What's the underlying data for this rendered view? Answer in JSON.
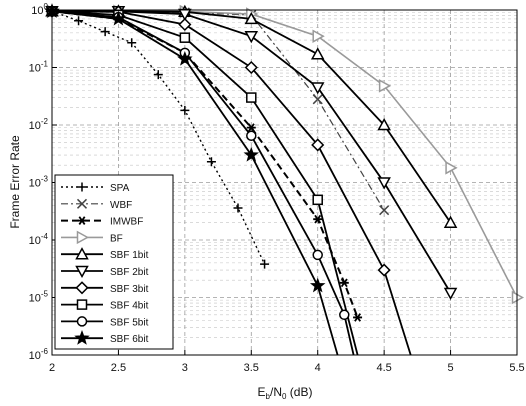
{
  "chart_data": {
    "type": "line",
    "xlabel_parts": {
      "e": "E",
      "b": "b",
      "sep": "/N",
      "zero": "0",
      "unit": " (dB)"
    },
    "ylabel": "Frame Error Rate",
    "xlim": [
      2,
      5.5
    ],
    "ylim_log10": [
      -6,
      0
    ],
    "yscale": "log",
    "x_ticks": [
      2,
      2.5,
      3,
      3.5,
      4,
      4.5,
      5,
      5.5
    ],
    "x_tick_labels": [
      "2",
      "2.5",
      "3",
      "3.5",
      "4",
      "4.5",
      "5",
      "5.5"
    ],
    "y_ticks_exp": [
      0,
      -1,
      -2,
      -3,
      -4,
      -5,
      -6
    ],
    "grid": true,
    "legend_position": "bottom-left",
    "series": [
      {
        "name": "SPA",
        "marker": "plus",
        "dash": "2,3",
        "color": "#000000",
        "stroke_width": 1.4,
        "points": [
          [
            2,
            0.95
          ],
          [
            2.2,
            0.65
          ],
          [
            2.4,
            0.42
          ],
          [
            2.6,
            0.27
          ],
          [
            2.8,
            0.075
          ],
          [
            3.0,
            0.018
          ],
          [
            3.2,
            0.0023
          ],
          [
            3.4,
            0.00036
          ],
          [
            3.6,
            3.8e-05
          ]
        ]
      },
      {
        "name": "WBF",
        "marker": "x",
        "dash": "7,3,2,3",
        "color": "#444444",
        "stroke_width": 1.2,
        "points": [
          [
            2,
            0.95
          ],
          [
            2.5,
            0.93
          ],
          [
            3.0,
            0.91
          ],
          [
            3.5,
            0.82
          ],
          [
            4.0,
            0.028
          ],
          [
            4.5,
            0.00033
          ]
        ]
      },
      {
        "name": "IMWBF",
        "marker": "star6",
        "dash": "7,4",
        "color": "#000000",
        "stroke_width": 2.0,
        "points": [
          [
            2,
            0.95
          ],
          [
            2.5,
            0.7
          ],
          [
            3.0,
            0.18
          ],
          [
            3.5,
            0.009
          ],
          [
            4.0,
            0.00023
          ],
          [
            4.2,
            1.8e-05
          ],
          [
            4.3,
            4.5e-06
          ]
        ]
      },
      {
        "name": "BF",
        "marker": "tri-right",
        "dash": "",
        "color": "#9a9a9a",
        "stroke_width": 1.6,
        "points": [
          [
            2,
            0.95
          ],
          [
            2.5,
            0.95
          ],
          [
            3.0,
            0.94
          ],
          [
            3.5,
            0.85
          ],
          [
            4.0,
            0.35
          ],
          [
            4.5,
            0.048
          ],
          [
            5.0,
            0.0018
          ],
          [
            5.5,
            1e-05
          ]
        ]
      },
      {
        "name": "SBF 1bit",
        "marker": "tri-up",
        "dash": "",
        "color": "#000000",
        "stroke_width": 1.8,
        "points": [
          [
            2,
            0.95
          ],
          [
            2.5,
            0.95
          ],
          [
            3.0,
            0.93
          ],
          [
            3.5,
            0.7
          ],
          [
            4.0,
            0.17
          ],
          [
            4.5,
            0.01
          ],
          [
            5.0,
            0.0002
          ]
        ]
      },
      {
        "name": "SBF 2bit",
        "marker": "tri-down",
        "dash": "",
        "color": "#000000",
        "stroke_width": 1.8,
        "points": [
          [
            2,
            0.95
          ],
          [
            2.5,
            0.95
          ],
          [
            3.0,
            0.85
          ],
          [
            3.5,
            0.35
          ],
          [
            4.0,
            0.045
          ],
          [
            4.5,
            0.001
          ],
          [
            5.0,
            1.2e-05
          ]
        ]
      },
      {
        "name": "SBF 3bit",
        "marker": "diamond",
        "dash": "",
        "color": "#000000",
        "stroke_width": 1.8,
        "points": [
          [
            2,
            0.95
          ],
          [
            2.5,
            0.93
          ],
          [
            3.0,
            0.56
          ],
          [
            3.5,
            0.1
          ],
          [
            4.0,
            0.0045
          ],
          [
            4.5,
            3e-05
          ],
          [
            4.7,
            1e-06
          ]
        ]
      },
      {
        "name": "SBF 4bit",
        "marker": "square",
        "dash": "",
        "color": "#000000",
        "stroke_width": 1.8,
        "points": [
          [
            2,
            0.95
          ],
          [
            2.5,
            0.82
          ],
          [
            3.0,
            0.33
          ],
          [
            3.5,
            0.03
          ],
          [
            4.0,
            0.0005
          ],
          [
            4.3,
            1e-06
          ]
        ]
      },
      {
        "name": "SBF 5bit",
        "marker": "circle",
        "dash": "",
        "color": "#000000",
        "stroke_width": 1.8,
        "points": [
          [
            2,
            0.95
          ],
          [
            2.5,
            0.75
          ],
          [
            3.0,
            0.18
          ],
          [
            3.5,
            0.0065
          ],
          [
            4.0,
            5.5e-05
          ],
          [
            4.2,
            5e-06
          ],
          [
            4.27,
            1e-06
          ]
        ]
      },
      {
        "name": "SBF 6bit",
        "marker": "star",
        "dash": "",
        "color": "#000000",
        "stroke_width": 1.8,
        "points": [
          [
            2,
            0.95
          ],
          [
            2.5,
            0.7
          ],
          [
            3.0,
            0.14
          ],
          [
            3.5,
            0.003
          ],
          [
            4.0,
            1.6e-05
          ],
          [
            4.15,
            1e-06
          ]
        ]
      }
    ]
  }
}
